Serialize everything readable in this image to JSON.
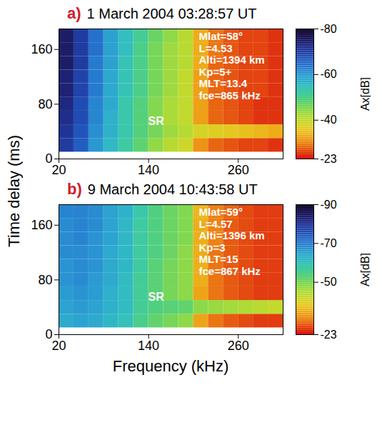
{
  "chart_data": {
    "type": "heatmap",
    "x_label": "Frequency (kHz)",
    "y_label": "Time delay (ms)",
    "panels": [
      {
        "letter": "a)",
        "title": "1 March 2004 03:28:57 UT",
        "xlim": [
          20,
          320
        ],
        "xticks": [
          20,
          140,
          260
        ],
        "ylim": [
          0,
          190
        ],
        "yticks": [
          0,
          80,
          160
        ],
        "annotations": [
          "Mlat=58°",
          "L=4.53",
          "Alti=1394 km",
          "Kp=5+",
          "MLT=13.4",
          "fce=865 kHz"
        ],
        "sr_label": {
          "text": "SR",
          "x": 150,
          "y": 55
        },
        "colorbar": {
          "label": "Ax[dB]",
          "lim": [
            -23,
            -80
          ],
          "ticks": [
            -80,
            -60,
            -40,
            -23
          ]
        },
        "cells": {
          "x_edges": [
            20,
            40,
            60,
            80,
            100,
            120,
            140,
            160,
            180,
            200,
            220,
            240,
            260,
            280,
            300,
            320
          ],
          "y_edges": [
            10,
            30,
            50,
            70,
            90,
            110,
            130,
            150,
            170,
            190
          ],
          "values": [
            [
              -70,
              -66,
              -60,
              -56,
              -52,
              -48,
              -44,
              -41,
              -39,
              -31,
              -28,
              -27,
              -26,
              -26,
              -25
            ],
            [
              -71,
              -67,
              -61,
              -57,
              -53,
              -49,
              -46,
              -43,
              -41,
              -38,
              -37,
              -36,
              -35,
              -34,
              -33
            ],
            [
              -72,
              -68,
              -62,
              -57,
              -53,
              -49,
              -45,
              -42,
              -40,
              -32,
              -28,
              -27,
              -26,
              -25,
              -25
            ],
            [
              -73,
              -68,
              -62,
              -58,
              -53,
              -49,
              -45,
              -42,
              -40,
              -32,
              -28,
              -27,
              -26,
              -25,
              -25
            ],
            [
              -74,
              -69,
              -63,
              -58,
              -54,
              -50,
              -46,
              -43,
              -40,
              -32,
              -28,
              -27,
              -26,
              -26,
              -25
            ],
            [
              -74,
              -69,
              -63,
              -58,
              -54,
              -50,
              -46,
              -43,
              -40,
              -32,
              -28,
              -27,
              -26,
              -26,
              -25
            ],
            [
              -75,
              -70,
              -63,
              -59,
              -54,
              -50,
              -46,
              -43,
              -41,
              -33,
              -28,
              -27,
              -26,
              -26,
              -25
            ],
            [
              -75,
              -70,
              -64,
              -59,
              -55,
              -50,
              -46,
              -43,
              -41,
              -33,
              -29,
              -27,
              -26,
              -26,
              -25
            ],
            [
              -75,
              -70,
              -64,
              -59,
              -55,
              -51,
              -47,
              -44,
              -41,
              -33,
              -29,
              -27,
              -26,
              -26,
              -25
            ]
          ]
        }
      },
      {
        "letter": "b)",
        "title": "9 March 2004 10:43:58 UT",
        "xlim": [
          20,
          320
        ],
        "xticks": [
          20,
          140,
          260
        ],
        "ylim": [
          0,
          190
        ],
        "yticks": [
          0,
          80,
          160
        ],
        "annotations": [
          "Mlat=59°",
          "L=4.57",
          "Alti=1396 km",
          "Kp=3",
          "MLT=15",
          "fce=867 kHz"
        ],
        "sr_label": {
          "text": "SR",
          "x": 150,
          "y": 55
        },
        "colorbar": {
          "label": "Ax[dB]",
          "lim": [
            -23,
            -90
          ],
          "ticks": [
            -90,
            -70,
            -50,
            -23
          ]
        },
        "cells": {
          "x_edges": [
            20,
            40,
            60,
            80,
            100,
            120,
            140,
            160,
            180,
            200,
            220,
            240,
            260,
            280,
            300,
            320
          ],
          "y_edges": [
            10,
            30,
            50,
            70,
            90,
            110,
            130,
            150,
            170,
            190
          ],
          "values": [
            [
              -64,
              -65,
              -64,
              -62,
              -60,
              -55,
              -52,
              -50,
              -48,
              -34,
              -30,
              -28,
              -27,
              -26,
              -26
            ],
            [
              -65,
              -66,
              -65,
              -63,
              -61,
              -56,
              -54,
              -53,
              -52,
              -48,
              -47,
              -46,
              -45,
              -44,
              -43
            ],
            [
              -66,
              -67,
              -66,
              -63,
              -61,
              -56,
              -53,
              -50,
              -48,
              -34,
              -30,
              -28,
              -27,
              -26,
              -26
            ],
            [
              -67,
              -68,
              -66,
              -64,
              -61,
              -56,
              -53,
              -50,
              -48,
              -35,
              -30,
              -28,
              -27,
              -26,
              -26
            ],
            [
              -67,
              -68,
              -67,
              -64,
              -62,
              -57,
              -53,
              -50,
              -48,
              -35,
              -30,
              -28,
              -27,
              -26,
              -26
            ],
            [
              -68,
              -68,
              -67,
              -64,
              -62,
              -57,
              -54,
              -51,
              -48,
              -35,
              -30,
              -28,
              -27,
              -26,
              -26
            ],
            [
              -68,
              -69,
              -67,
              -65,
              -62,
              -57,
              -54,
              -51,
              -49,
              -35,
              -31,
              -28,
              -27,
              -26,
              -26
            ],
            [
              -68,
              -69,
              -68,
              -65,
              -62,
              -57,
              -54,
              -51,
              -49,
              -35,
              -31,
              -28,
              -27,
              -26,
              -26
            ],
            [
              -69,
              -69,
              -68,
              -65,
              -63,
              -58,
              -54,
              -51,
              -49,
              -36,
              -31,
              -29,
              -27,
              -26,
              -26
            ]
          ]
        }
      }
    ]
  }
}
